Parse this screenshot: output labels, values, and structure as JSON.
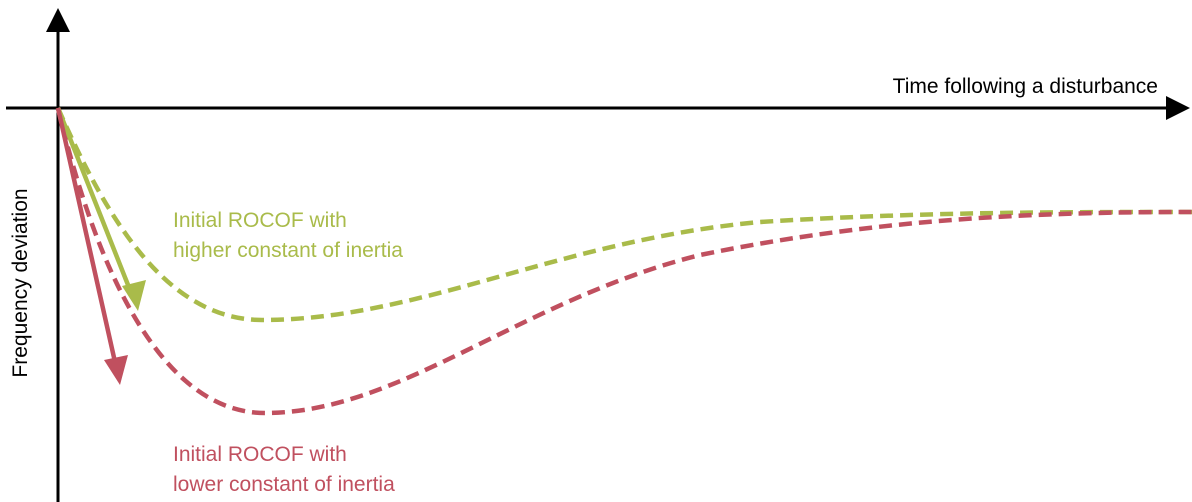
{
  "axes": {
    "x_label": "Time following a disturbance",
    "y_label": "Frequency deviation"
  },
  "curves": [
    {
      "id": "higher-inertia",
      "label_line1": "Initial ROCOF with",
      "label_line2": "higher constant of inertia",
      "color": "#a9bb4a"
    },
    {
      "id": "lower-inertia",
      "label_line1": "Initial ROCOF with",
      "label_line2": "lower constant of inertia",
      "color": "#c0505f"
    }
  ]
}
